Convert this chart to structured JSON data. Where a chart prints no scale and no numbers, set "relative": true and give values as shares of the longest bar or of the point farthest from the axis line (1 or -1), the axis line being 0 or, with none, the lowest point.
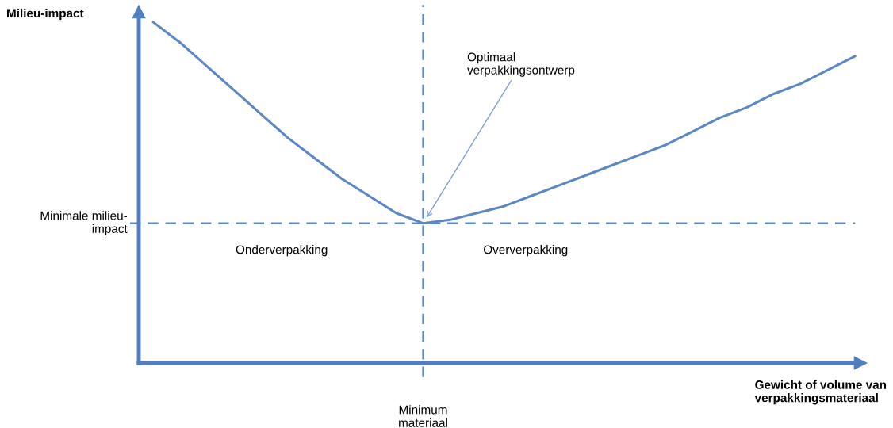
{
  "chart_data": {
    "type": "line",
    "relative": true,
    "ylabel": "Milieu-impact",
    "xlabel": "Gewicht of volume van\nverpakkingsmateriaal",
    "categories": [
      null,
      null,
      null,
      null,
      null,
      null,
      null,
      null,
      null,
      null,
      null,
      null,
      null,
      null,
      null,
      null,
      null,
      null,
      null,
      null,
      null,
      null,
      null,
      null,
      null,
      null,
      null
    ],
    "series": [
      {
        "color": "#5b87c5",
        "values": [
          1.0,
          0.94,
          0.87,
          0.8,
          0.73,
          0.66,
          0.6,
          0.54,
          0.49,
          0.44,
          0.41,
          0.42,
          0.44,
          0.46,
          0.49,
          0.52,
          0.55,
          0.58,
          0.61,
          0.64,
          0.68,
          0.72,
          0.75,
          0.79,
          0.82,
          0.86,
          0.9
        ]
      }
    ],
    "ref_lines": [
      {
        "axis": "y",
        "value": 0.41,
        "label": "Minimale milieu-\nimpact",
        "color": "#5b87c5",
        "line_style": "dashed"
      }
    ],
    "annotations": [
      "Onderverpakking",
      "Oververpakking",
      "Optimaal\nverpakkingsontwerp",
      "Minimum\nmateriaal"
    ],
    "grid": false,
    "legend": false,
    "marker": "none",
    "line_style": "solid"
  }
}
